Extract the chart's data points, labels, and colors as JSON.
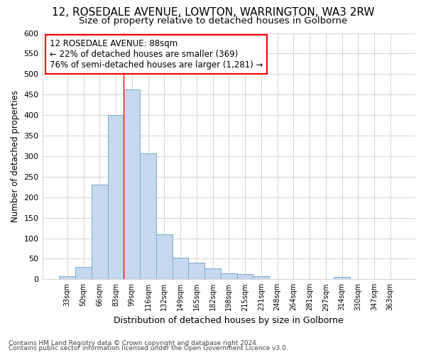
{
  "title1": "12, ROSEDALE AVENUE, LOWTON, WARRINGTON, WA3 2RW",
  "title2": "Size of property relative to detached houses in Golborne",
  "xlabel": "Distribution of detached houses by size in Golborne",
  "ylabel": "Number of detached properties",
  "categories": [
    "33sqm",
    "50sqm",
    "66sqm",
    "83sqm",
    "99sqm",
    "116sqm",
    "132sqm",
    "149sqm",
    "165sqm",
    "182sqm",
    "198sqm",
    "215sqm",
    "231sqm",
    "248sqm",
    "264sqm",
    "281sqm",
    "297sqm",
    "314sqm",
    "330sqm",
    "347sqm",
    "363sqm"
  ],
  "values": [
    7,
    30,
    230,
    400,
    463,
    307,
    110,
    53,
    40,
    27,
    14,
    12,
    7,
    0,
    0,
    0,
    0,
    5,
    0,
    0,
    0
  ],
  "bar_color": "#c5d8ee",
  "bar_edge_color": "#7aabcc",
  "red_line_x": 4.0,
  "ylim": [
    0,
    600
  ],
  "yticks": [
    0,
    50,
    100,
    150,
    200,
    250,
    300,
    350,
    400,
    450,
    500,
    550,
    600
  ],
  "annotation_line1": "12 ROSEDALE AVENUE: 88sqm",
  "annotation_line2": "← 22% of detached houses are smaller (369)",
  "annotation_line3": "76% of semi-detached houses are larger (1,281) →",
  "footer1": "Contains HM Land Registry data © Crown copyright and database right 2024.",
  "footer2": "Contains public sector information licensed under the Open Government Licence v3.0.",
  "background_color": "#ffffff",
  "plot_bg_color": "#ffffff",
  "grid_color": "#cccccc",
  "title1_fontsize": 11,
  "title2_fontsize": 9.5
}
